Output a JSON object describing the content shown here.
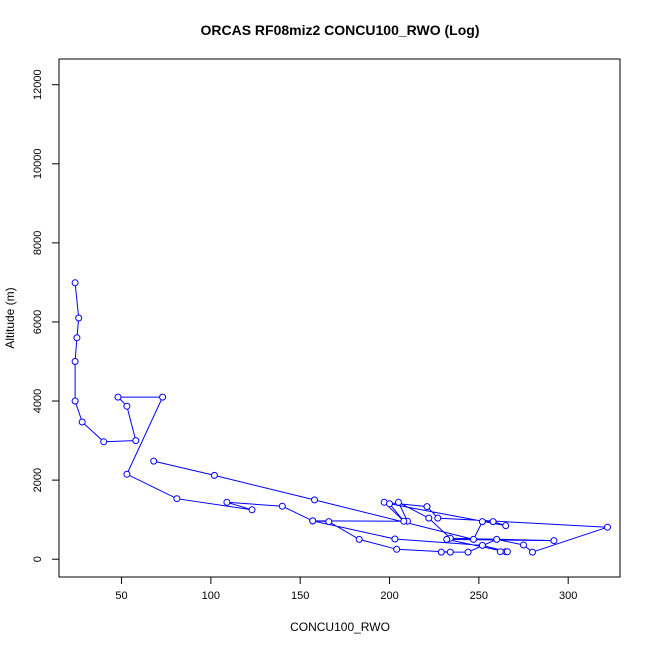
{
  "chart_data": {
    "type": "line",
    "title": "ORCAS RF08miz2 CONCU100_RWO (Log)",
    "xlabel": "CONCU100_RWO",
    "ylabel": "Altitude (m)",
    "xlim": [
      15,
      329
    ],
    "ylim": [
      -450,
      12650
    ],
    "x_ticks": [
      50,
      100,
      150,
      200,
      250,
      300
    ],
    "y_ticks": [
      0,
      2000,
      4000,
      6000,
      8000,
      10000,
      12000
    ],
    "grid": false,
    "series_color": "#0000ff",
    "series": [
      {
        "points": [
          [
            24,
            6990
          ],
          [
            26,
            6100
          ],
          [
            25,
            5600
          ],
          [
            24,
            5000
          ],
          [
            24,
            4000
          ],
          [
            28,
            3470
          ],
          [
            40,
            2970
          ],
          [
            58,
            3000
          ],
          [
            53,
            3870
          ],
          [
            48,
            4100
          ],
          [
            73,
            4100
          ],
          [
            53,
            2150
          ],
          [
            81,
            1530
          ],
          [
            123,
            1250
          ],
          [
            109,
            1440
          ],
          [
            140,
            1340
          ],
          [
            157,
            970
          ],
          [
            210,
            960
          ],
          [
            205,
            1440
          ],
          [
            222,
            1040
          ],
          [
            234,
            530
          ],
          [
            292,
            470
          ],
          [
            232,
            500
          ],
          [
            265,
            190
          ],
          [
            262,
            190
          ],
          [
            266,
            190
          ],
          [
            252,
            350
          ],
          [
            203,
            510
          ],
          [
            157,
            970
          ],
          [
            166,
            950
          ],
          [
            183,
            500
          ],
          [
            204,
            250
          ],
          [
            234,
            180
          ],
          [
            229,
            180
          ],
          [
            244,
            180
          ],
          [
            260,
            500
          ],
          [
            275,
            360
          ],
          [
            280,
            180
          ],
          [
            322,
            810
          ],
          [
            227,
            1040
          ],
          [
            221,
            1330
          ],
          [
            197,
            1440
          ],
          [
            208,
            960
          ],
          [
            200,
            1400
          ],
          [
            265,
            850
          ],
          [
            258,
            950
          ],
          [
            252,
            950
          ],
          [
            247,
            500
          ],
          [
            158,
            1500
          ],
          [
            102,
            2120
          ],
          [
            68,
            2480
          ]
        ]
      }
    ]
  }
}
